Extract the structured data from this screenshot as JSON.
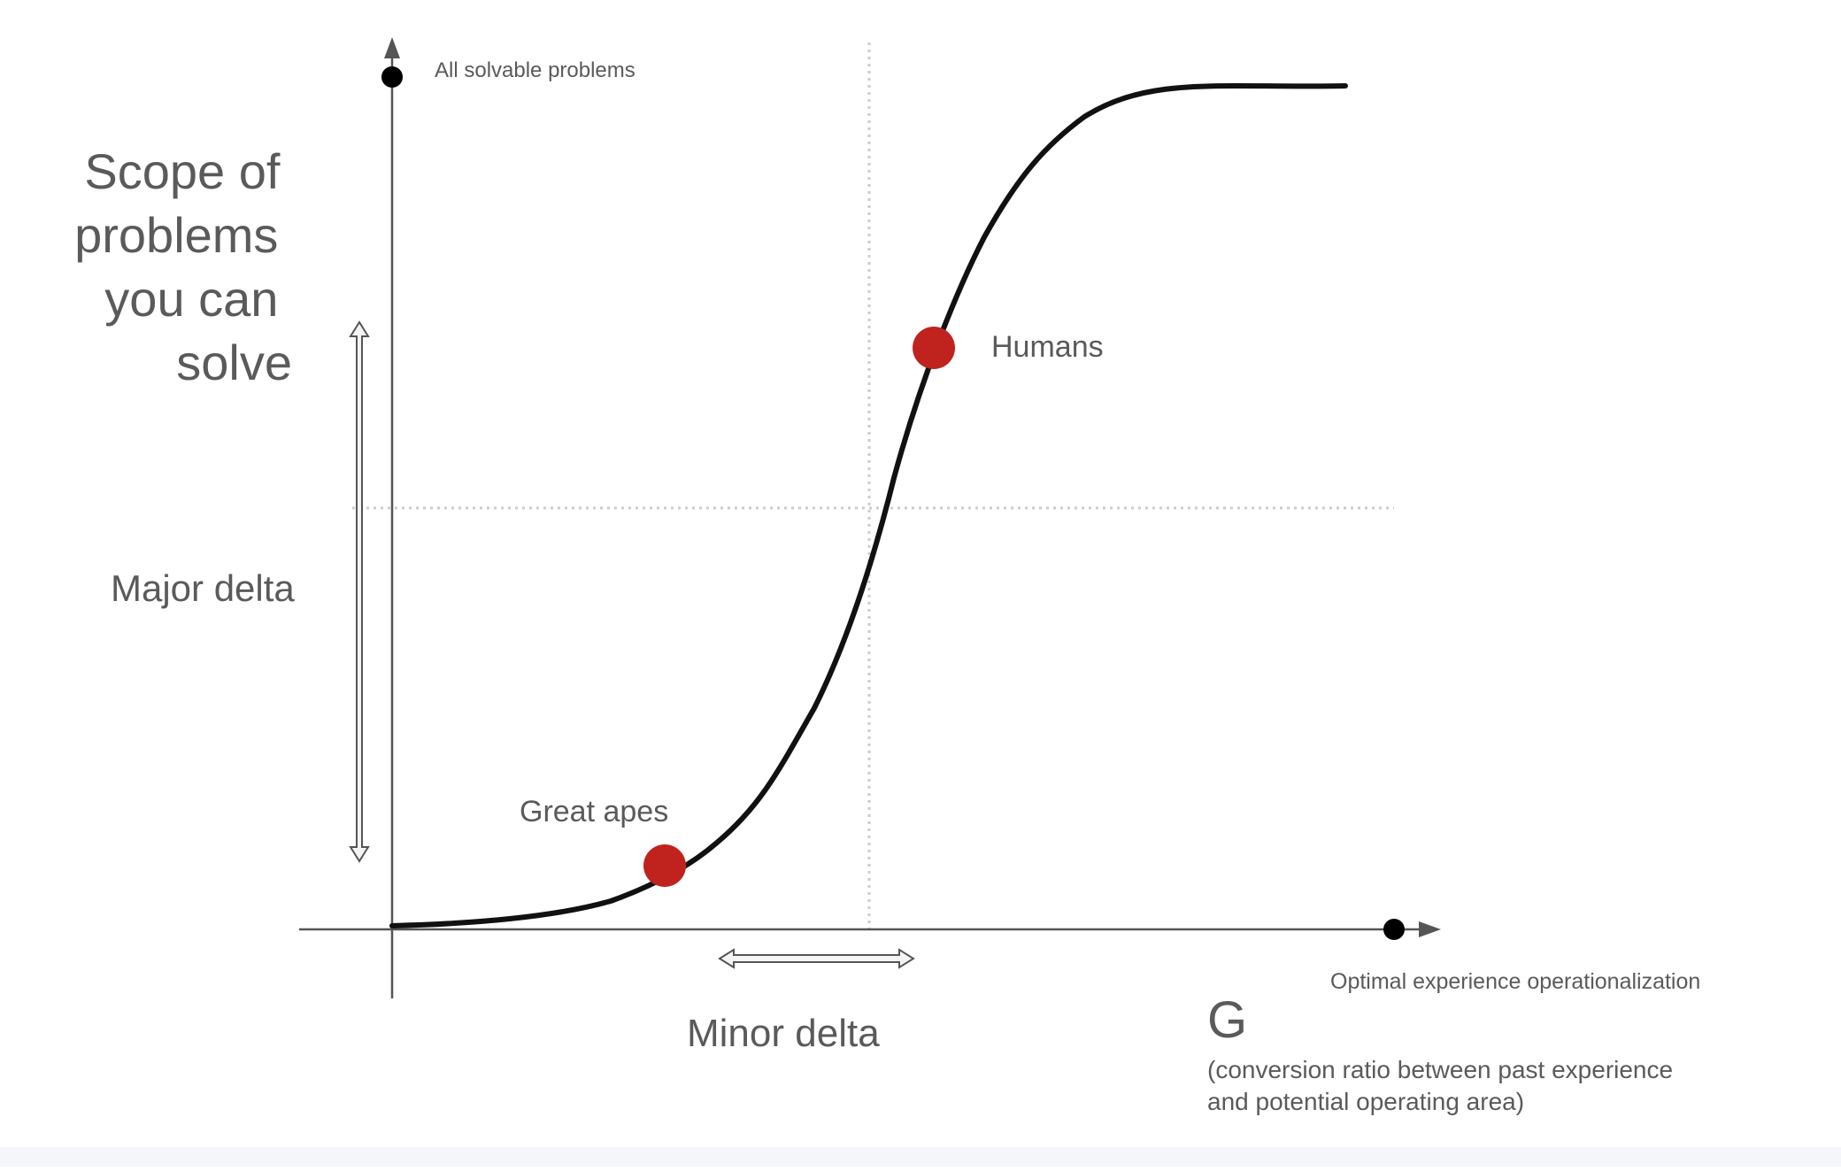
{
  "y_axis": {
    "top_label": "All solvable problems",
    "title_lines": [
      "Scope of",
      "problems",
      "you can",
      "solve"
    ]
  },
  "x_axis": {
    "end_label": "Optimal experience operationalization",
    "symbol": "G",
    "caption_lines": [
      "(conversion ratio between past experience",
      "and potential operating area)"
    ]
  },
  "points": [
    {
      "label": "Great apes",
      "color": "#c0231e"
    },
    {
      "label": "Humans",
      "color": "#c0231e"
    }
  ],
  "deltas": {
    "major": "Major delta",
    "minor": "Minor delta"
  },
  "colors": {
    "axis": "#555555",
    "curve": "#111111",
    "guide": "#cccccc",
    "marker": "#c0231e"
  }
}
